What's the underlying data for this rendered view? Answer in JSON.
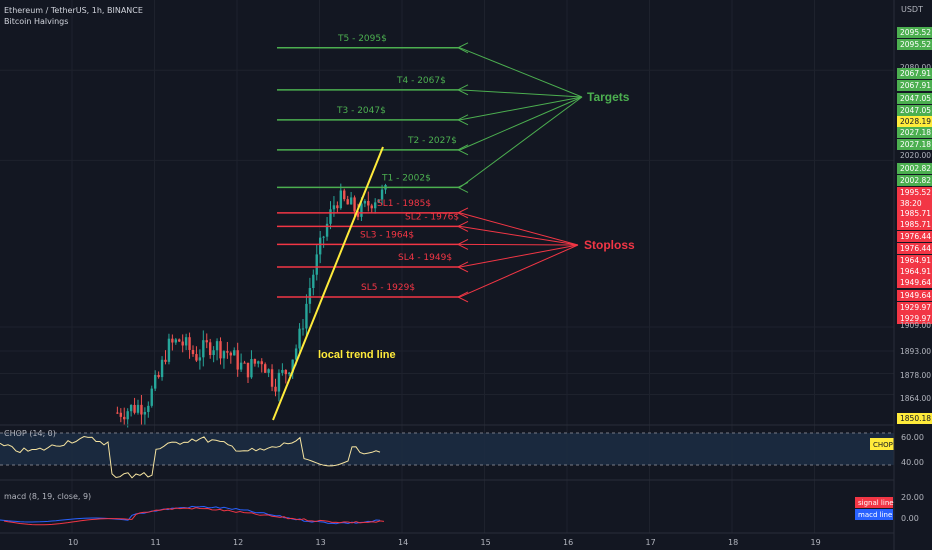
{
  "header": {
    "symbol": "Ethereum / TetherUS, 1h, BINANCE",
    "indicator": "Bitcoin Halvings",
    "currency": "USDT"
  },
  "price_axis": {
    "ticks": [
      "2095.52",
      "2095.52",
      "2080.00",
      "2067.91",
      "2067.91",
      "2047.05",
      "2047.05",
      "2028.19",
      "2027.18",
      "2027.18",
      "2020.00",
      "2002.82",
      "2002.82",
      "1995.52",
      "38:20",
      "1985.71",
      "1985.71",
      "1976.44",
      "1976.44",
      "1964.91",
      "1964.91",
      "1949.64",
      "1949.64",
      "1929.97",
      "1929.97",
      "1909.00",
      "1893.00",
      "1878.00",
      "1864.00",
      "1850.18"
    ]
  },
  "time_axis": {
    "labels": [
      "10",
      "11",
      "12",
      "13",
      "14",
      "15",
      "16",
      "17",
      "18",
      "19"
    ]
  },
  "annotations": {
    "targets_label": "Targets",
    "stoploss_label": "Stoploss",
    "trend_label": "local trend line",
    "targets": [
      {
        "label": "T5 - 2095$",
        "price": 2095
      },
      {
        "label": "T4 - 2067$",
        "price": 2067
      },
      {
        "label": "T3 - 2047$",
        "price": 2047
      },
      {
        "label": "T2 - 2027$",
        "price": 2027
      },
      {
        "label": "T1 - 2002$",
        "price": 2002
      }
    ],
    "stops": [
      {
        "label": "SL1 - 1985$",
        "price": 1985
      },
      {
        "label": "SL2 - 1976$",
        "price": 1976
      },
      {
        "label": "SL3 - 1964$",
        "price": 1964
      },
      {
        "label": "SL4 - 1949$",
        "price": 1949
      },
      {
        "label": "SL5 - 1929$",
        "price": 1929
      }
    ]
  },
  "chop_pane": {
    "title": "CHOP (14, 0)",
    "tag": "CHOP",
    "ticks": [
      "60.00",
      "40.00"
    ]
  },
  "macd_pane": {
    "title": "macd (8, 19, close, 9)",
    "ticks": [
      "20.00",
      "0.00"
    ],
    "legend": [
      "signal line",
      "macd line"
    ]
  },
  "colors": {
    "background": "#131722",
    "up": "#26a69a",
    "down": "#ef5350",
    "target": "#4caf50",
    "stop": "#f23645",
    "trend": "#ffeb3b"
  },
  "chart_data": {
    "type": "candlestick",
    "title": "Ethereum / TetherUS, 1h, BINANCE",
    "xlabel": "",
    "ylabel": "USDT",
    "x_range": [
      9.5,
      20.0
    ],
    "ylim": [
      1846,
      2110
    ],
    "last_price": 1995.52
  }
}
